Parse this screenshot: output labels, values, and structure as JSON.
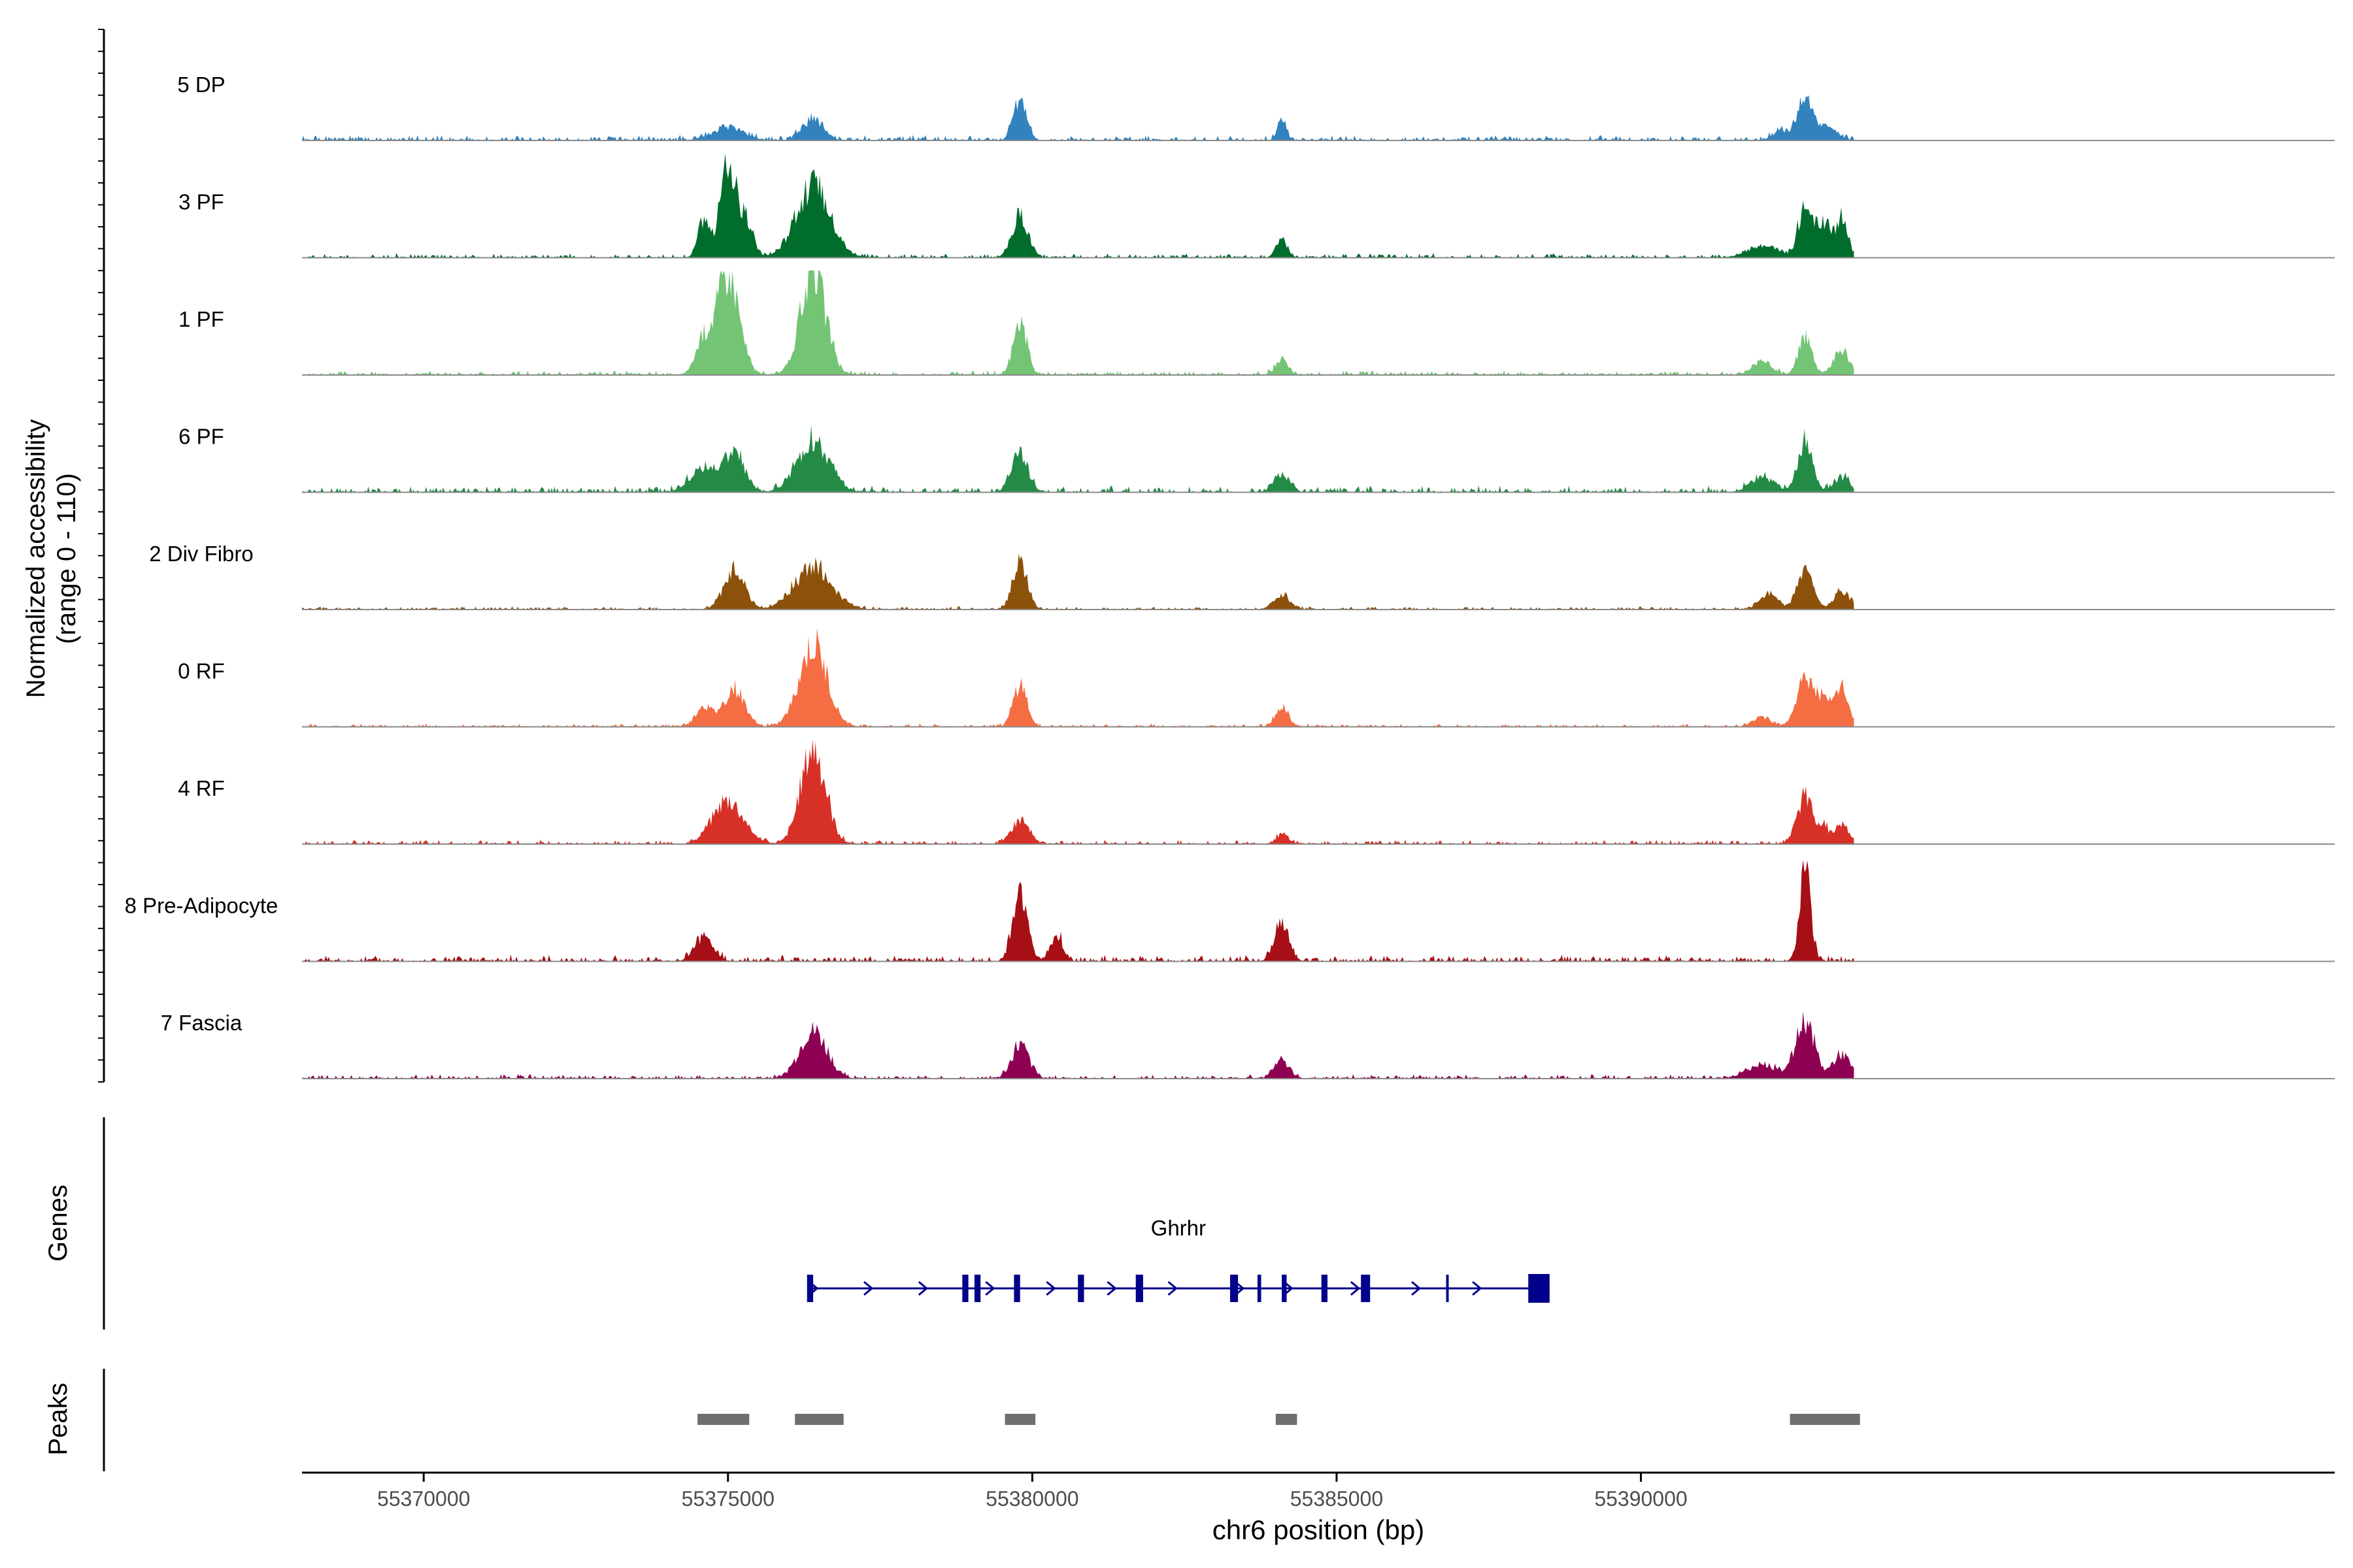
{
  "chart_data": {
    "type": "area",
    "title": "",
    "region": "chr6",
    "xlabel": "chr6 position (bp)",
    "ylabel": [
      "Normalized accessibility",
      "(range 0 - 110)"
    ],
    "ylim": [
      0,
      110
    ],
    "xlim": [
      55368000,
      55401400
    ],
    "x_ticks": [
      55370000,
      55375000,
      55380000,
      55385000,
      55390000
    ],
    "x_tick_labels": [
      "55370000",
      "55375000",
      "55380000",
      "55385000",
      "55390000"
    ],
    "track_range": [
      55368000,
      55393500
    ],
    "peak_scale": 110,
    "grid": false,
    "legend": "none",
    "series": [
      {
        "name": "5 DP",
        "color": "#3182BD",
        "noise": 5,
        "peaks": [
          [
            55375000,
            13,
            260
          ],
          [
            55376400,
            22,
            170
          ],
          [
            55379800,
            40,
            110
          ],
          [
            55384100,
            22,
            70
          ],
          [
            55392300,
            10,
            130
          ],
          [
            55392700,
            42,
            130
          ],
          [
            55393100,
            15,
            120
          ]
        ]
      },
      {
        "name": "3 PF",
        "color": "#006D2C",
        "noise": 4,
        "peaks": [
          [
            55374600,
            40,
            90
          ],
          [
            55375000,
            100,
            130
          ],
          [
            55375300,
            35,
            120
          ],
          [
            55376400,
            75,
            280
          ],
          [
            55379800,
            45,
            130
          ],
          [
            55384100,
            20,
            90
          ],
          [
            55392000,
            12,
            250
          ],
          [
            55392700,
            55,
            110
          ],
          [
            55393000,
            35,
            110
          ],
          [
            55393300,
            40,
            100
          ]
        ]
      },
      {
        "name": "1 PF",
        "color": "#74C476",
        "noise": 4,
        "peaks": [
          [
            55374600,
            35,
            130
          ],
          [
            55375000,
            110,
            180
          ],
          [
            55376400,
            110,
            200
          ],
          [
            55379800,
            55,
            110
          ],
          [
            55384100,
            15,
            100
          ],
          [
            55392000,
            15,
            150
          ],
          [
            55392700,
            40,
            110
          ],
          [
            55393300,
            25,
            130
          ]
        ]
      },
      {
        "name": "6 PF",
        "color": "#238B45",
        "noise": 6,
        "peaks": [
          [
            55374600,
            25,
            220
          ],
          [
            55375100,
            40,
            170
          ],
          [
            55376400,
            55,
            260
          ],
          [
            55379800,
            40,
            130
          ],
          [
            55384100,
            18,
            130
          ],
          [
            55392000,
            15,
            200
          ],
          [
            55392700,
            50,
            120
          ],
          [
            55393300,
            15,
            120
          ]
        ]
      },
      {
        "name": "2 Div Fibro",
        "color": "#8C510A",
        "noise": 3,
        "peaks": [
          [
            55375100,
            40,
            170
          ],
          [
            55376400,
            45,
            300
          ],
          [
            55379800,
            50,
            120
          ],
          [
            55384100,
            15,
            130
          ],
          [
            55392100,
            15,
            150
          ],
          [
            55392700,
            40,
            130
          ],
          [
            55393300,
            20,
            130
          ]
        ]
      },
      {
        "name": "0 RF",
        "color": "#F46D43",
        "noise": 3,
        "peaks": [
          [
            55374600,
            22,
            130
          ],
          [
            55375100,
            40,
            170
          ],
          [
            55376400,
            85,
            230
          ],
          [
            55379800,
            45,
            110
          ],
          [
            55384100,
            20,
            110
          ],
          [
            55392000,
            10,
            150
          ],
          [
            55392700,
            50,
            140
          ],
          [
            55393000,
            25,
            120
          ],
          [
            55393300,
            40,
            110
          ]
        ]
      },
      {
        "name": "4 RF",
        "color": "#D73027",
        "noise": 4,
        "peaks": [
          [
            55375000,
            45,
            250
          ],
          [
            55376400,
            100,
            200
          ],
          [
            55379800,
            25,
            140
          ],
          [
            55384100,
            10,
            100
          ],
          [
            55392700,
            50,
            130
          ],
          [
            55393000,
            15,
            100
          ],
          [
            55393300,
            20,
            110
          ]
        ]
      },
      {
        "name": "8 Pre-Adipocyte",
        "color": "#A50F15",
        "noise": 6,
        "peaks": [
          [
            55374600,
            25,
            150
          ],
          [
            55379800,
            70,
            120
          ],
          [
            55380400,
            25,
            100
          ],
          [
            55384100,
            40,
            120
          ],
          [
            55392700,
            95,
            90
          ]
        ]
      },
      {
        "name": "7 Fascia",
        "color": "#8E0152",
        "noise": 4,
        "peaks": [
          [
            55376400,
            50,
            220
          ],
          [
            55379800,
            35,
            140
          ],
          [
            55384100,
            18,
            130
          ],
          [
            55392000,
            15,
            250
          ],
          [
            55392700,
            60,
            150
          ],
          [
            55393300,
            25,
            140
          ]
        ]
      }
    ],
    "genes": [
      {
        "name": "Ghrhr",
        "color": "#00008B",
        "strand": "+",
        "start": 55376300,
        "end": 55388500,
        "exons": [
          [
            55376300,
            55376400
          ],
          [
            55378850,
            55378950
          ],
          [
            55379050,
            55379150
          ],
          [
            55379700,
            55379800
          ],
          [
            55380750,
            55380850
          ],
          [
            55381700,
            55381820
          ],
          [
            55383250,
            55383380
          ],
          [
            55383700,
            55383760
          ],
          [
            55384100,
            55384180
          ],
          [
            55384750,
            55384850
          ],
          [
            55385400,
            55385550
          ],
          [
            55386800,
            55386830
          ],
          [
            55388150,
            55388500
          ]
        ]
      }
    ],
    "peaks_track": {
      "label": "Peaks",
      "color": "#6E6E6E",
      "regions": [
        [
          55374500,
          55375350
        ],
        [
          55376100,
          55376900
        ],
        [
          55379550,
          55380050
        ],
        [
          55384000,
          55384350
        ],
        [
          55392450,
          55393600
        ]
      ]
    },
    "panel_labels": {
      "genes": "Genes",
      "peaks": "Peaks"
    }
  }
}
